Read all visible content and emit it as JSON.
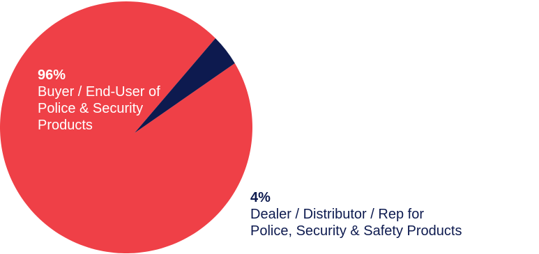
{
  "chart_data": {
    "type": "pie",
    "slices": [
      {
        "value": 96,
        "pct_label": "96%",
        "label_lines": [
          "Buyer / End-User of",
          "Police & Security",
          "Products"
        ],
        "color": "#ef4047"
      },
      {
        "value": 4,
        "pct_label": "4%",
        "label_lines": [
          "Dealer / Distributor / Rep for",
          "Police, Security & Safety Products"
        ],
        "color": "#0d1a4f"
      }
    ]
  }
}
